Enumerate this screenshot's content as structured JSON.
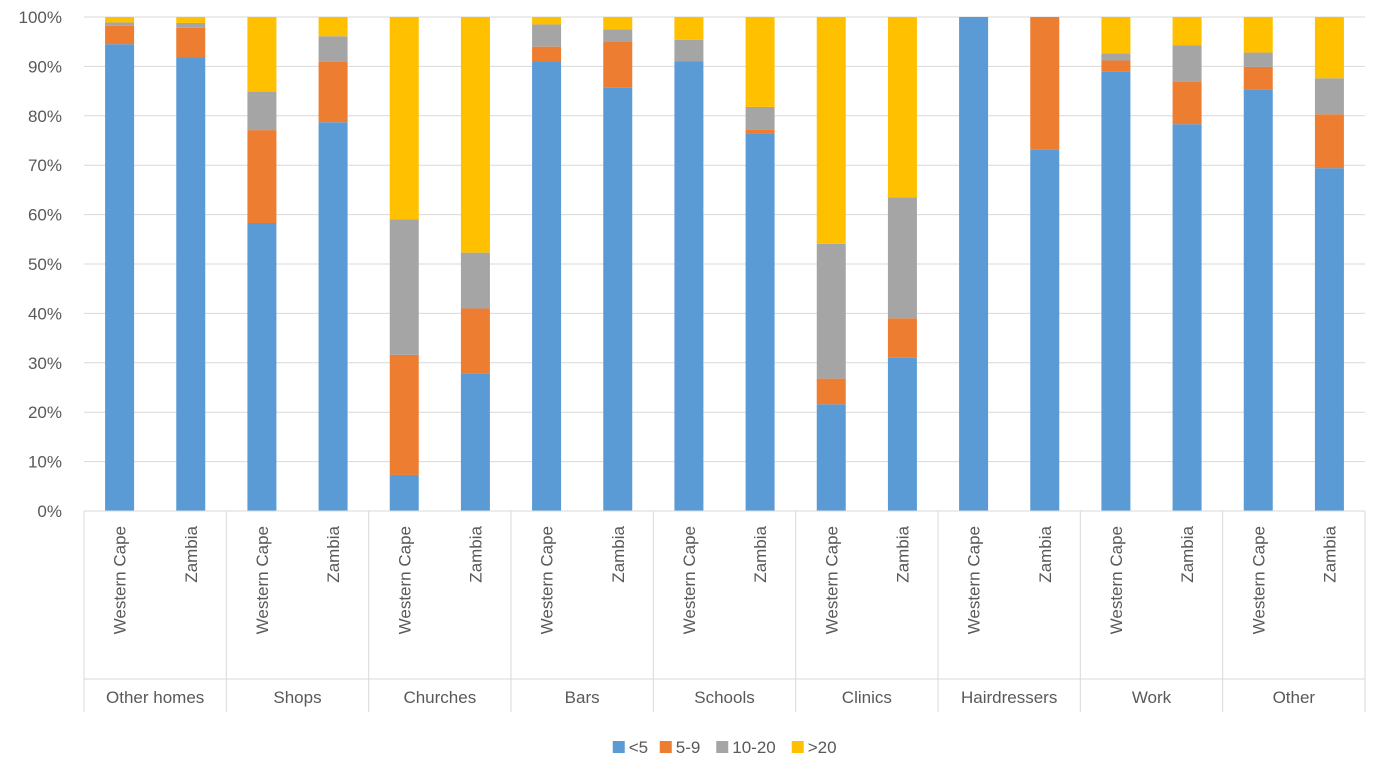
{
  "chart_data": {
    "type": "bar",
    "stacked": true,
    "percent": true,
    "ylim": [
      0,
      100
    ],
    "y_ticks": [
      "0%",
      "10%",
      "20%",
      "30%",
      "40%",
      "50%",
      "60%",
      "70%",
      "80%",
      "90%",
      "100%"
    ],
    "groups": [
      "Other homes",
      "Shops",
      "Churches",
      "Bars",
      "Schools",
      "Clinics",
      "Hairdressers",
      "Work",
      "Other"
    ],
    "subcategories": [
      "Western Cape",
      "Zambia"
    ],
    "legend_position": "bottom",
    "grid": true,
    "series": [
      {
        "name": "<5",
        "color": "#5B9BD5",
        "values": [
          94.5,
          91.8,
          58.3,
          78.7,
          7.3,
          27.9,
          91.0,
          85.7,
          91.0,
          76.4,
          21.6,
          31.0,
          100.0,
          73.1,
          89.0,
          78.3,
          85.3,
          69.4
        ]
      },
      {
        "name": "5-9",
        "color": "#ED7D31",
        "values": [
          3.7,
          6.0,
          18.8,
          12.2,
          24.3,
          13.1,
          3.0,
          9.4,
          0.0,
          0.8,
          5.2,
          8.0,
          0.0,
          26.9,
          2.2,
          8.7,
          4.6,
          10.9
        ]
      },
      {
        "name": "10-20",
        "color": "#A5A5A5",
        "values": [
          0.7,
          1.0,
          7.8,
          5.2,
          27.4,
          11.3,
          4.5,
          2.4,
          4.4,
          4.6,
          27.3,
          24.5,
          0.0,
          0.0,
          1.4,
          7.3,
          2.9,
          7.3
        ]
      },
      {
        "name": ">20",
        "color": "#FFC000",
        "values": [
          1.1,
          1.2,
          15.1,
          3.9,
          41.0,
          47.7,
          1.5,
          2.5,
          4.6,
          18.2,
          45.9,
          36.5,
          0.0,
          0.0,
          7.4,
          5.7,
          7.2,
          12.4
        ]
      }
    ]
  }
}
